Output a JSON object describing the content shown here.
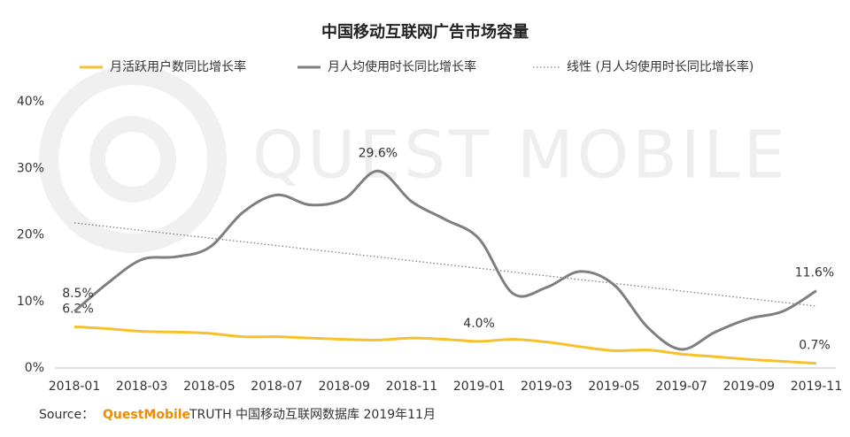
{
  "chart_data": {
    "type": "line",
    "title": "中国移动互联网广告市场容量",
    "watermark": "QUEST MOBILE",
    "categories": [
      "2018-01",
      null,
      "2018-03",
      null,
      "2018-05",
      null,
      "2018-07",
      null,
      "2018-09",
      null,
      "2018-11",
      null,
      "2019-01",
      null,
      "2019-03",
      null,
      "2019-05",
      null,
      "2019-07",
      null,
      "2019-09",
      null,
      "2019-11"
    ],
    "series": [
      {
        "name": "月活跃用户数同比增长率",
        "color": "#f5c12e",
        "values": [
          6.2,
          5.9,
          5.5,
          5.4,
          5.2,
          4.7,
          4.7,
          4.5,
          4.3,
          4.2,
          4.5,
          4.3,
          4.0,
          4.3,
          3.9,
          3.2,
          2.6,
          2.7,
          2.1,
          1.7,
          1.3,
          1.0,
          0.7
        ],
        "value_labels": [
          "6.2%",
          null,
          null,
          null,
          null,
          null,
          null,
          null,
          null,
          null,
          null,
          null,
          "4.0%",
          null,
          null,
          null,
          null,
          null,
          null,
          null,
          null,
          null,
          "0.7%"
        ]
      },
      {
        "name": "月人均使用时长同比增长率",
        "color": "#7f7f7f",
        "values": [
          8.5,
          12.8,
          16.3,
          16.7,
          18.1,
          23.4,
          26.0,
          24.5,
          25.4,
          29.6,
          25.0,
          22.3,
          19.4,
          11.2,
          12.1,
          14.5,
          12.5,
          6.1,
          2.8,
          5.4,
          7.4,
          8.5,
          11.6
        ],
        "value_labels": [
          "8.5%",
          null,
          null,
          null,
          null,
          null,
          null,
          null,
          null,
          "29.6%",
          null,
          null,
          null,
          null,
          null,
          null,
          null,
          null,
          null,
          null,
          null,
          null,
          "11.6%"
        ]
      }
    ],
    "trendline": {
      "name": "线性 (月人均使用时长同比增长率)",
      "color": "#7f7f7f",
      "start": 21.8,
      "end": 9.3
    },
    "ylim": [
      0,
      40
    ],
    "yticks": [
      {
        "value": 0,
        "label": "0%"
      },
      {
        "value": 10,
        "label": "10%"
      },
      {
        "value": 20,
        "label": "20%"
      },
      {
        "value": 30,
        "label": "30%"
      },
      {
        "value": 40,
        "label": "40%"
      }
    ],
    "grid": false,
    "source": {
      "prefix": "Source：",
      "brand": "QuestMobile",
      "text": "TRUTH 中国移动互联网数据库 2019年11月"
    }
  }
}
